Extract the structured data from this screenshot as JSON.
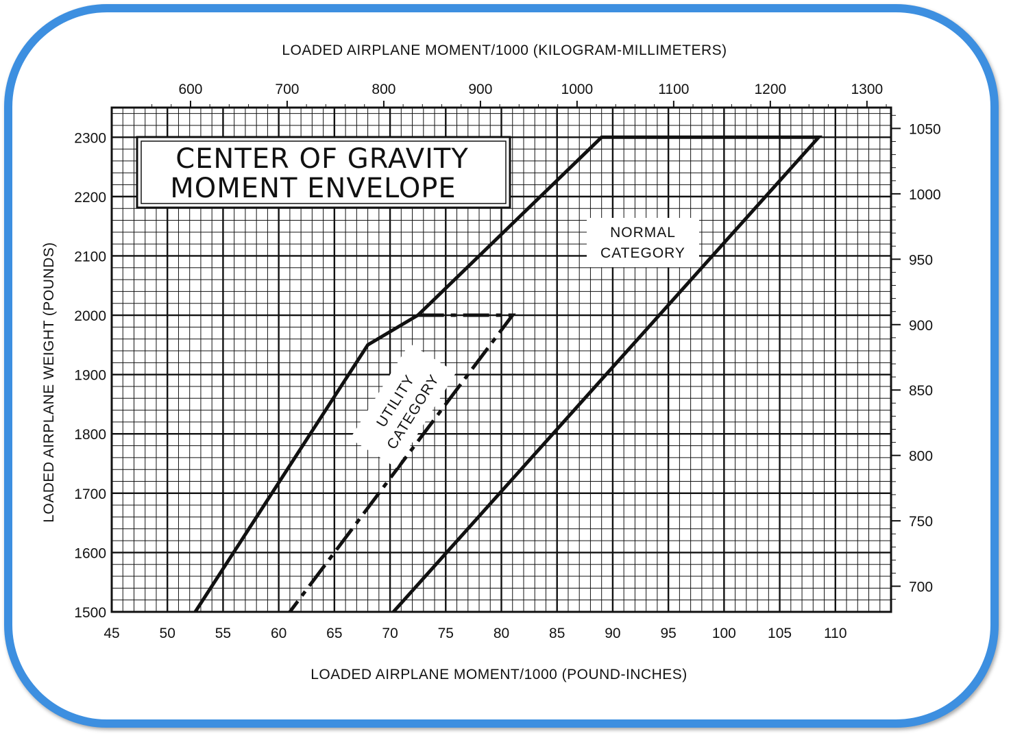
{
  "chart_data": {
    "type": "line",
    "title_lines": [
      "CENTER OF GRAVITY",
      "MOMENT ENVELOPE"
    ],
    "xlabel": "LOADED AIRPLANE MOMENT/1000 (POUND-INCHES)",
    "ylabel": "LOADED AIRPLANE WEIGHT (POUNDS)",
    "x2label": "LOADED AIRPLANE MOMENT/1000 (KILOGRAM-MILLIMETERS)",
    "y2label": "LOADED AIRPLANE WEIGHT (KILOGRAMS)",
    "xlim": [
      45,
      115
    ],
    "ylim": [
      1500,
      2350
    ],
    "x_ticks": [
      "45",
      "50",
      "55",
      "60",
      "65",
      "70",
      "75",
      "80",
      "85",
      "90",
      "95",
      "100",
      "105",
      "110"
    ],
    "y_ticks": [
      "1500",
      "1600",
      "1700",
      "1800",
      "1900",
      "2000",
      "2100",
      "2200",
      "2300"
    ],
    "x2_ticks": [
      "600",
      "700",
      "800",
      "900",
      "1000",
      "1100",
      "1200",
      "1300"
    ],
    "y2_ticks": [
      "700",
      "750",
      "800",
      "850",
      "900",
      "950",
      "1000",
      "1050"
    ],
    "grid": true,
    "series": [
      {
        "name": "NORMAL CATEGORY",
        "style": "solid",
        "x": [
          52.5,
          68,
          72.5,
          89,
          108.5,
          70.3
        ],
        "y": [
          1500,
          1950,
          2000,
          2300,
          2300,
          1500
        ]
      },
      {
        "name": "UTILITY CATEGORY",
        "style": "dashed",
        "x": [
          72.5,
          81,
          61
        ],
        "y": [
          2000,
          2000,
          1500
        ]
      }
    ],
    "labels": {
      "normal": [
        "NORMAL",
        "CATEGORY"
      ],
      "utility": [
        "UTILITY",
        "CATEGORY"
      ]
    }
  }
}
